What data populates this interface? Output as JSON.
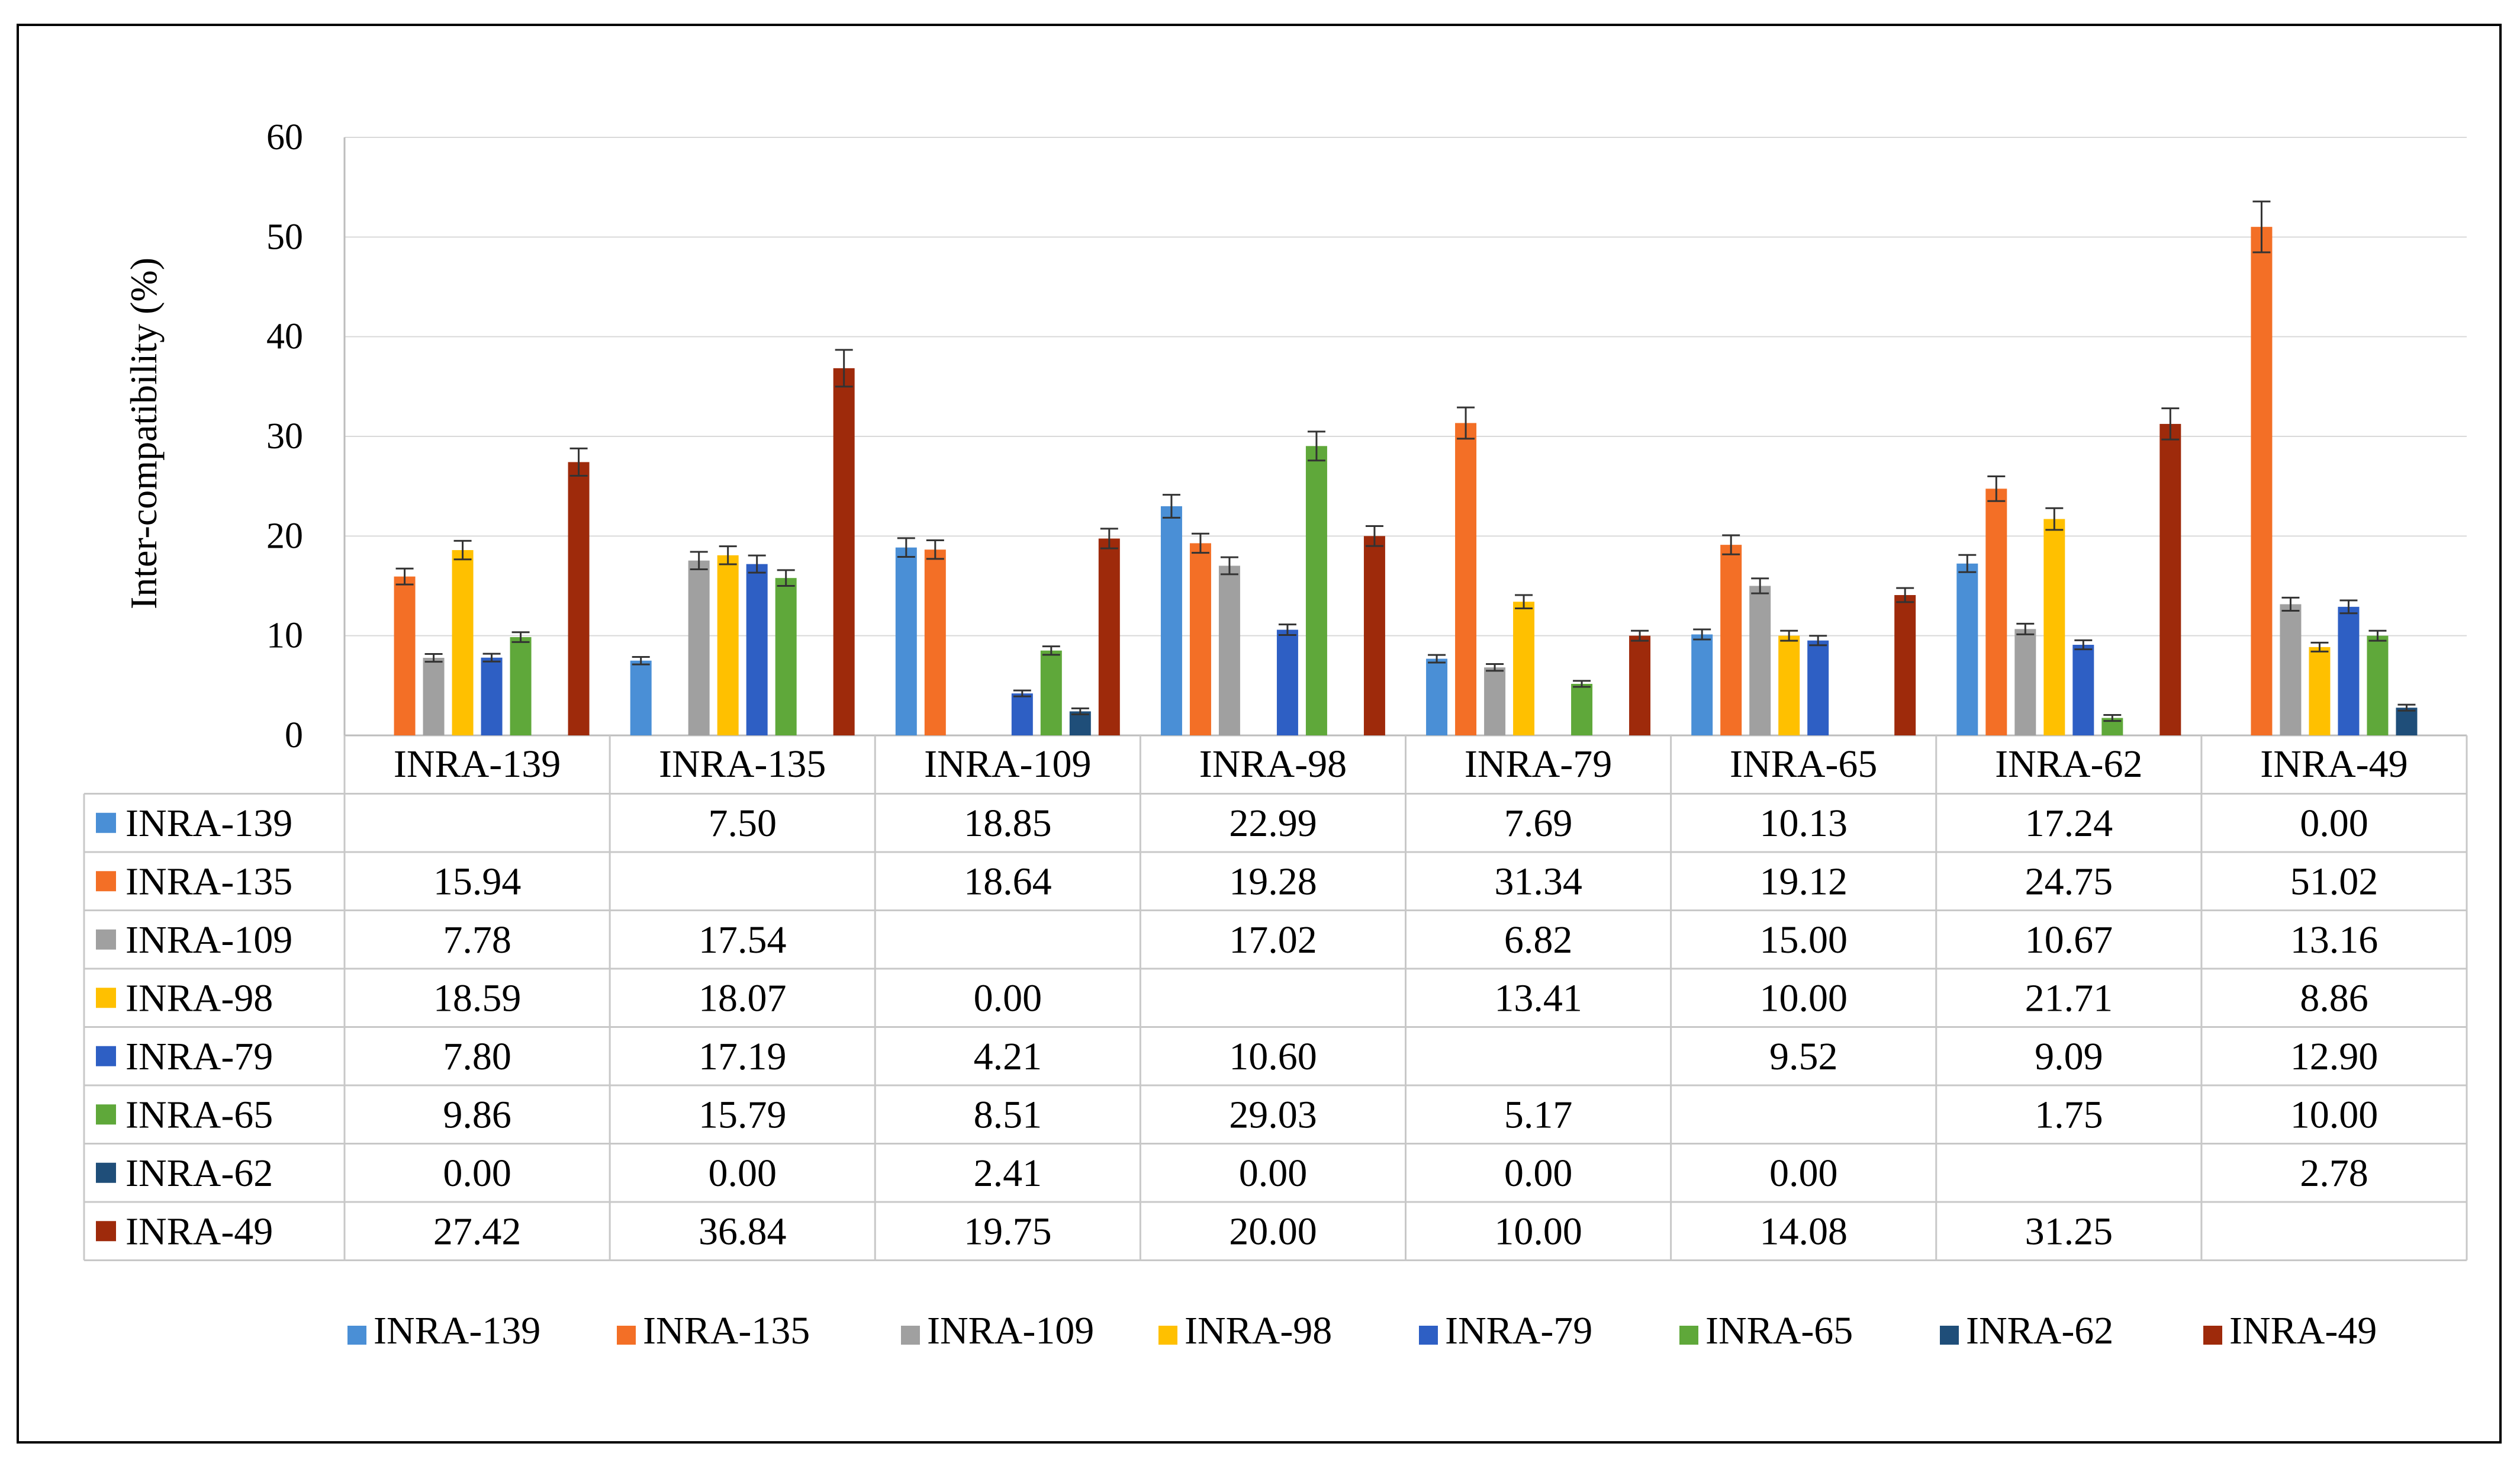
{
  "chart_data": {
    "type": "bar",
    "title": "",
    "xlabel": "",
    "ylabel": "Inter-compatibility  (%)",
    "ylim": [
      0,
      60
    ],
    "yticks": [
      "0",
      "10",
      "20",
      "30",
      "40",
      "50",
      "60"
    ],
    "grid": true,
    "legend_position": "bottom",
    "categories": [
      "INRA-139",
      "INRA-135",
      "INRA-109",
      "INRA-98",
      "INRA-79",
      "INRA-65",
      "INRA-62",
      "INRA-49"
    ],
    "series": [
      {
        "name": "INRA-139",
        "color": "#4a8fd6",
        "values": [
          null,
          7.5,
          18.85,
          22.99,
          7.69,
          10.13,
          17.24,
          0.0
        ],
        "labels": [
          "",
          "7.50",
          "18.85",
          "22.99",
          "7.69",
          "10.13",
          "17.24",
          "0.00"
        ]
      },
      {
        "name": "INRA-135",
        "color": "#f36f26",
        "values": [
          15.94,
          null,
          18.64,
          19.28,
          31.34,
          19.12,
          24.75,
          51.02
        ],
        "labels": [
          "15.94",
          "",
          "18.64",
          "19.28",
          "31.34",
          "19.12",
          "24.75",
          "51.02"
        ]
      },
      {
        "name": "INRA-109",
        "color": "#a0a0a0",
        "values": [
          7.78,
          17.54,
          null,
          17.02,
          6.82,
          15.0,
          10.67,
          13.16
        ],
        "labels": [
          "7.78",
          "17.54",
          "",
          "17.02",
          "6.82",
          "15.00",
          "10.67",
          "13.16"
        ]
      },
      {
        "name": "INRA-98",
        "color": "#ffc000",
        "values": [
          18.59,
          18.07,
          0.0,
          null,
          13.41,
          10.0,
          21.71,
          8.86
        ],
        "labels": [
          "18.59",
          "18.07",
          "0.00",
          "",
          "13.41",
          "10.00",
          "21.71",
          "8.86"
        ]
      },
      {
        "name": "INRA-79",
        "color": "#2e5fc4",
        "values": [
          7.8,
          17.19,
          4.21,
          10.6,
          null,
          9.52,
          9.09,
          12.9
        ],
        "labels": [
          "7.80",
          "17.19",
          "4.21",
          "10.60",
          "",
          "9.52",
          "9.09",
          "12.90"
        ]
      },
      {
        "name": "INRA-65",
        "color": "#5fa83a",
        "values": [
          9.86,
          15.79,
          8.51,
          29.03,
          5.17,
          null,
          1.75,
          10.0
        ],
        "labels": [
          "9.86",
          "15.79",
          "8.51",
          "29.03",
          "5.17",
          "",
          "1.75",
          "10.00"
        ]
      },
      {
        "name": "INRA-62",
        "color": "#1f4e79",
        "values": [
          0.0,
          0.0,
          2.41,
          0.0,
          0.0,
          0.0,
          null,
          2.78
        ],
        "labels": [
          "0.00",
          "0.00",
          "2.41",
          "0.00",
          "0.00",
          "0.00",
          "",
          "2.78"
        ]
      },
      {
        "name": "INRA-49",
        "color": "#9e2a0b",
        "values": [
          27.42,
          36.84,
          19.75,
          20.0,
          10.0,
          14.08,
          31.25,
          null
        ],
        "labels": [
          "27.42",
          "36.84",
          "19.75",
          "20.00",
          "10.00",
          "14.08",
          "31.25",
          ""
        ]
      }
    ]
  }
}
